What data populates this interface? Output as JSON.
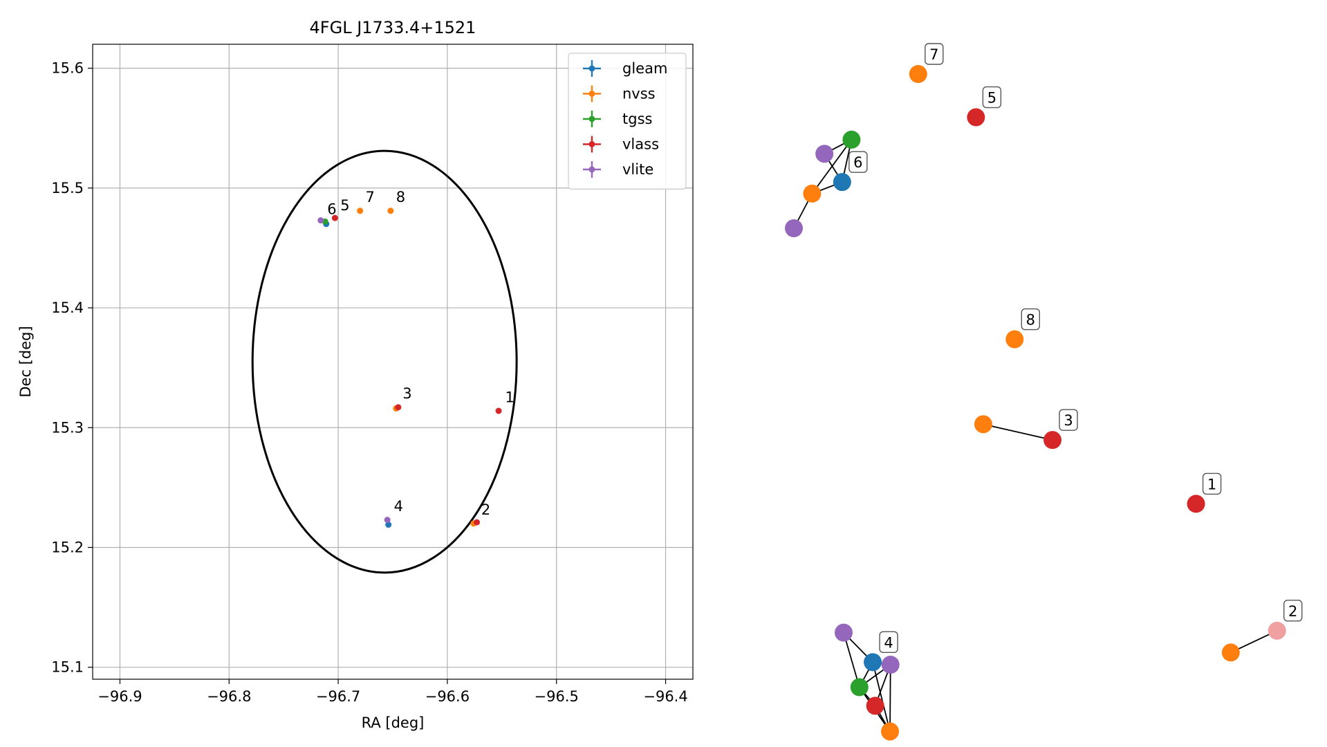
{
  "chart_data": [
    {
      "type": "scatter",
      "title": "4FGL J1733.4+1521",
      "xlabel": "RA [deg]",
      "ylabel": "Dec [deg]",
      "xlim": [
        -96.925,
        -96.375
      ],
      "ylim": [
        15.09,
        15.62
      ],
      "xticks": [
        -96.9,
        -96.8,
        -96.7,
        -96.6,
        -96.5,
        -96.4
      ],
      "xtick_labels": [
        "−96.9",
        "−96.8",
        "−96.7",
        "−96.6",
        "−96.5",
        "−96.4"
      ],
      "yticks": [
        15.1,
        15.2,
        15.3,
        15.4,
        15.5,
        15.6
      ],
      "ytick_labels": [
        "15.1",
        "15.2",
        "15.3",
        "15.4",
        "15.5",
        "15.6"
      ],
      "grid": true,
      "legend_position": "top-right",
      "series": [
        {
          "name": "gleam",
          "color": "#1f77b4",
          "points": [
            [
              -96.711,
              15.47
            ],
            [
              -96.654,
              15.219
            ]
          ]
        },
        {
          "name": "nvss",
          "color": "#ff7f0e",
          "points": [
            [
              -96.68,
              15.481
            ],
            [
              -96.652,
              15.481
            ],
            [
              -96.647,
              15.316
            ],
            [
              -96.576,
              15.22
            ]
          ]
        },
        {
          "name": "tgss",
          "color": "#2ca02c",
          "points": [
            [
              -96.712,
              15.472
            ]
          ]
        },
        {
          "name": "vlass",
          "color": "#d62728",
          "points": [
            [
              -96.703,
              15.475
            ],
            [
              -96.645,
              15.317
            ],
            [
              -96.553,
              15.314
            ],
            [
              -96.573,
              15.221
            ]
          ]
        },
        {
          "name": "vlite",
          "color": "#9467bd",
          "points": [
            [
              -96.716,
              15.473
            ],
            [
              -96.655,
              15.223
            ]
          ]
        }
      ],
      "ellipse": {
        "center": [
          -96.6575,
          15.355
        ],
        "ra_semi_axis": 0.121,
        "dec_semi_axis": 0.176,
        "color": "#000000"
      },
      "point_labels": [
        {
          "text": "1",
          "x": -96.547,
          "y": 15.319
        },
        {
          "text": "2",
          "x": -96.569,
          "y": 15.225
        },
        {
          "text": "3",
          "x": -96.641,
          "y": 15.322
        },
        {
          "text": "4",
          "x": -96.649,
          "y": 15.228
        },
        {
          "text": "5",
          "x": -96.698,
          "y": 15.479
        },
        {
          "text": "6",
          "x": -96.71,
          "y": 15.476
        },
        {
          "text": "7",
          "x": -96.675,
          "y": 15.486
        },
        {
          "text": "8",
          "x": -96.647,
          "y": 15.486
        }
      ]
    },
    {
      "type": "network",
      "nodes": [
        {
          "id": "n7",
          "color": "#ff7f0e",
          "x": 0.2522,
          "y": 0.9643
        },
        {
          "id": "n5",
          "color": "#d62728",
          "x": 0.3694,
          "y": 0.8969
        },
        {
          "id": "n8",
          "color": "#ff7f0e",
          "x": 0.4478,
          "y": 0.551
        },
        {
          "id": "n3v",
          "color": "#d62728",
          "x": 0.5246,
          "y": 0.3941
        },
        {
          "id": "n3n",
          "color": "#ff7f0e",
          "x": 0.3842,
          "y": 0.4187
        },
        {
          "id": "n1",
          "color": "#d62728",
          "x": 0.8157,
          "y": 0.2947
        },
        {
          "id": "n2v",
          "color": "#f0a0a0",
          "x": 0.98,
          "y": 0.097
        },
        {
          "id": "n2n",
          "color": "#ff7f0e",
          "x": 0.8862,
          "y": 0.063
        },
        {
          "id": "g6_vl1",
          "color": "#9467bd",
          "x": 0.062,
          "y": 0.84
        },
        {
          "id": "g6_tg",
          "color": "#2ca02c",
          "x": 0.117,
          "y": 0.862
        },
        {
          "id": "g6_gl",
          "color": "#1f77b4",
          "x": 0.098,
          "y": 0.796
        },
        {
          "id": "g6_nv",
          "color": "#ff7f0e",
          "x": 0.037,
          "y": 0.778
        },
        {
          "id": "g6_vl2",
          "color": "#9467bd",
          "x": 0.0,
          "y": 0.724
        },
        {
          "id": "g4_vl1",
          "color": "#9467bd",
          "x": 0.101,
          "y": 0.094
        },
        {
          "id": "g4_gl",
          "color": "#1f77b4",
          "x": 0.16,
          "y": 0.048
        },
        {
          "id": "g4_vl2",
          "color": "#9467bd",
          "x": 0.196,
          "y": 0.044
        },
        {
          "id": "g4_tg",
          "color": "#2ca02c",
          "x": 0.133,
          "y": 0.009
        },
        {
          "id": "g4_vs",
          "color": "#d62728",
          "x": 0.165,
          "y": -0.02
        },
        {
          "id": "g4_nv",
          "color": "#ff7f0e",
          "x": 0.195,
          "y": -0.06
        }
      ],
      "edges": [
        [
          "n3v",
          "n3n"
        ],
        [
          "n2v",
          "n2n"
        ],
        [
          "g6_vl1",
          "g6_tg"
        ],
        [
          "g6_vl1",
          "g6_gl"
        ],
        [
          "g6_tg",
          "g6_gl"
        ],
        [
          "g6_gl",
          "g6_nv"
        ],
        [
          "g6_nv",
          "g6_tg"
        ],
        [
          "g6_nv",
          "g6_vl2"
        ],
        [
          "g4_vl1",
          "g4_gl"
        ],
        [
          "g4_vl1",
          "g4_tg"
        ],
        [
          "g4_gl",
          "g4_tg"
        ],
        [
          "g4_gl",
          "g4_vl2"
        ],
        [
          "g4_gl",
          "g4_nv"
        ],
        [
          "g4_tg",
          "g4_vs"
        ],
        [
          "g4_tg",
          "g4_nv"
        ],
        [
          "g4_tg",
          "g4_vl2"
        ],
        [
          "g4_vs",
          "g4_vl2"
        ],
        [
          "g4_vs",
          "g4_nv"
        ],
        [
          "g4_vl2",
          "g4_nv"
        ]
      ],
      "labels": [
        {
          "text": "7",
          "node": "n7"
        },
        {
          "text": "5",
          "node": "n5"
        },
        {
          "text": "8",
          "node": "n8"
        },
        {
          "text": "3",
          "node": "n3v"
        },
        {
          "text": "1",
          "node": "n1"
        },
        {
          "text": "2",
          "node": "n2v"
        },
        {
          "text": "6",
          "node": "g6_gl"
        },
        {
          "text": "4",
          "node": "g4_gl"
        }
      ]
    }
  ]
}
